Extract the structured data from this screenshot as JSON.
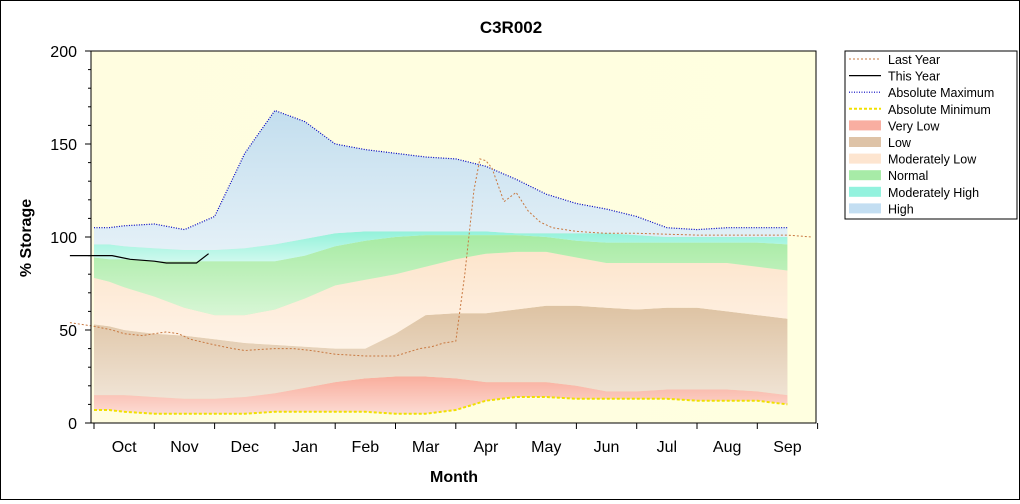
{
  "chart_data": {
    "type": "area",
    "title": "C3R002",
    "xlabel": "Month",
    "ylabel": "% Storage",
    "ylim": [
      0,
      200
    ],
    "yticks": [
      0,
      50,
      100,
      150,
      200
    ],
    "xlim": [
      0,
      12
    ],
    "x_unit": "months since Oct 1",
    "categories": [
      "Oct",
      "Nov",
      "Dec",
      "Jan",
      "Feb",
      "Mar",
      "Apr",
      "May",
      "Jun",
      "Jul",
      "Aug",
      "Sep"
    ],
    "grid": false,
    "legend_position": "right",
    "colors": {
      "plot_bg_left": "#fffde0",
      "plot_bg_right": "#ffffe0",
      "very_low": "#f8a090",
      "low": "#d8b898",
      "moderately_low": "#fde0c8",
      "normal": "#98e898",
      "moderately_high": "#80f0d8",
      "high": "#b8d8f0",
      "last_year": "#c87840",
      "this_year": "#000000",
      "absolute_maximum": "#0000c0",
      "absolute_minimum": "#f0e000"
    },
    "bands": {
      "x": [
        0.0,
        0.25,
        0.5,
        1.0,
        1.5,
        2.0,
        2.5,
        3.0,
        3.5,
        4.0,
        4.5,
        5.0,
        5.5,
        6.0,
        6.5,
        7.0,
        7.5,
        8.0,
        8.5,
        9.0,
        9.5,
        10.0,
        10.5,
        11.0,
        11.5
      ],
      "absolute_minimum": [
        7,
        7,
        6,
        5,
        5,
        5,
        5,
        6,
        6,
        6,
        6,
        5,
        5,
        7,
        12,
        14,
        14,
        13,
        13,
        13,
        13,
        12,
        12,
        12,
        10
      ],
      "very_low": [
        15,
        15,
        15,
        14,
        13,
        13,
        14,
        16,
        19,
        22,
        24,
        25,
        25,
        24,
        22,
        22,
        22,
        20,
        17,
        17,
        18,
        18,
        18,
        17,
        15
      ],
      "low": [
        53,
        52,
        50,
        48,
        47,
        45,
        43,
        42,
        41,
        40,
        40,
        48,
        58,
        59,
        59,
        61,
        63,
        63,
        62,
        61,
        62,
        62,
        60,
        58,
        56
      ],
      "moderately_low": [
        78,
        76,
        73,
        68,
        62,
        58,
        58,
        61,
        67,
        74,
        77,
        80,
        84,
        88,
        91,
        92,
        92,
        89,
        86,
        86,
        86,
        86,
        86,
        84,
        82
      ],
      "normal": [
        89,
        88,
        88,
        87,
        87,
        87,
        87,
        87,
        90,
        95,
        98,
        100,
        101,
        101,
        101,
        101,
        100,
        98,
        97,
        97,
        97,
        97,
        97,
        97,
        96
      ],
      "moderately_high": [
        96,
        96,
        95,
        94,
        93,
        93,
        94,
        96,
        99,
        102,
        103,
        103,
        103,
        103,
        103,
        102,
        102,
        102,
        102,
        101,
        100,
        100,
        100,
        100,
        100
      ],
      "high": [
        105,
        105,
        106,
        107,
        104,
        111,
        145,
        168,
        162,
        150,
        147,
        145,
        143,
        142,
        138,
        131,
        123,
        118,
        115,
        111,
        105,
        104,
        105,
        105,
        105
      ]
    },
    "series": [
      {
        "name": "Last Year",
        "x": [
          -0.4,
          0.0,
          0.3,
          0.5,
          0.8,
          1.0,
          1.2,
          1.4,
          1.6,
          2.0,
          2.3,
          2.5,
          3.0,
          3.3,
          3.6,
          4.0,
          4.5,
          4.8,
          5.0,
          5.2,
          5.4,
          5.6,
          5.8,
          6.0,
          6.15,
          6.3,
          6.4,
          6.5,
          6.6,
          6.8,
          7.0,
          7.2,
          7.4,
          7.6,
          8.0,
          8.5,
          9.0,
          10.0,
          11.0,
          11.5,
          11.9
        ],
        "y": [
          54,
          52,
          50,
          48,
          47,
          48,
          49,
          48,
          45,
          42,
          40,
          39,
          40,
          40,
          39,
          37,
          36,
          36,
          36,
          38,
          40,
          41,
          43,
          44,
          80,
          125,
          142,
          141,
          137,
          119,
          124,
          114,
          108,
          105,
          103,
          102,
          102,
          101,
          101,
          101,
          100
        ]
      },
      {
        "name": "This Year",
        "x": [
          -0.4,
          0.0,
          0.3,
          0.6,
          1.0,
          1.2,
          1.5,
          1.7,
          1.9
        ],
        "y": [
          90,
          90,
          90,
          88,
          87,
          86,
          86,
          86,
          91
        ]
      },
      {
        "name": "Absolute Maximum",
        "x": [
          0.0,
          0.25,
          0.5,
          1.0,
          1.5,
          2.0,
          2.5,
          3.0,
          3.5,
          4.0,
          4.5,
          5.0,
          5.5,
          6.0,
          6.5,
          7.0,
          7.5,
          8.0,
          8.5,
          9.0,
          9.5,
          10.0,
          10.5,
          11.0,
          11.5
        ],
        "y": [
          105,
          105,
          106,
          107,
          104,
          111,
          145,
          168,
          162,
          150,
          147,
          145,
          143,
          142,
          138,
          131,
          123,
          118,
          115,
          111,
          105,
          104,
          105,
          105,
          105
        ]
      },
      {
        "name": "Absolute Minimum",
        "x": [
          0.0,
          0.25,
          0.5,
          1.0,
          1.5,
          2.0,
          2.5,
          3.0,
          3.5,
          4.0,
          4.5,
          5.0,
          5.5,
          6.0,
          6.5,
          7.0,
          7.5,
          8.0,
          8.5,
          9.0,
          9.5,
          10.0,
          10.5,
          11.0,
          11.5
        ],
        "y": [
          7,
          7,
          6,
          5,
          5,
          5,
          5,
          6,
          6,
          6,
          6,
          5,
          5,
          7,
          12,
          14,
          14,
          13,
          13,
          13,
          13,
          12,
          12,
          12,
          10
        ]
      }
    ],
    "legend": [
      "Last Year",
      "This Year",
      "Absolute Maximum",
      "Absolute Minimum",
      "Very Low",
      "Low",
      "Moderately Low",
      "Normal",
      "Moderately High",
      "High"
    ]
  }
}
